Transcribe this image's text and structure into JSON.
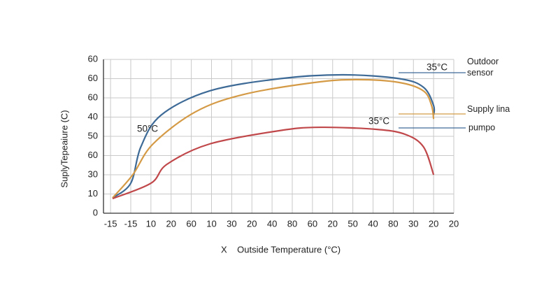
{
  "chart_data": {
    "type": "line",
    "y_label": "SuplyTepeaiure (C)",
    "x_label": "X    Outside Temperature (°C)",
    "xlim": [
      -0.35,
      17
    ],
    "ylim": [
      0,
      80
    ],
    "xticks": [
      {
        "value": 0,
        "label": "-15"
      },
      {
        "value": 1,
        "label": "-15"
      },
      {
        "value": 2,
        "label": "10"
      },
      {
        "value": 3,
        "label": "20"
      },
      {
        "value": 4,
        "label": "60"
      },
      {
        "value": 5,
        "label": "10"
      },
      {
        "value": 6,
        "label": "30"
      },
      {
        "value": 7,
        "label": "20"
      },
      {
        "value": 8,
        "label": "40"
      },
      {
        "value": 9,
        "label": "80"
      },
      {
        "value": 10,
        "label": "60"
      },
      {
        "value": 11,
        "label": "20"
      },
      {
        "value": 12,
        "label": "50"
      },
      {
        "value": 13,
        "label": "40"
      },
      {
        "value": 14,
        "label": "80"
      },
      {
        "value": 15,
        "label": "30"
      },
      {
        "value": 16,
        "label": "20"
      },
      {
        "value": 17,
        "label": "20"
      }
    ],
    "yticks": [
      0,
      10,
      {
        "value": 20,
        "label": "30"
      },
      {
        "value": 30,
        "label": "60"
      },
      {
        "value": 40,
        "label": "50"
      },
      {
        "value": 50,
        "label": "40"
      },
      60,
      {
        "value": 70,
        "label": "60"
      },
      {
        "value": 80,
        "label": "60"
      }
    ],
    "grid": true,
    "series": [
      {
        "name": "Outdoor sensor",
        "color": "#3d6a96",
        "x": [
          0.1,
          1,
          1.5,
          2.5,
          4.9,
          8.4,
          11.5,
          14.3,
          15.5,
          16,
          16
        ],
        "values": [
          8,
          15.6,
          34.5,
          51,
          63.6,
          70,
          72,
          70,
          65.5,
          56,
          51
        ]
      },
      {
        "name": "Supply lina",
        "color": "#d49a45",
        "x": [
          0.1,
          1.1,
          2.1,
          4.2,
          6.6,
          10.1,
          12.2,
          14.3,
          15.5,
          15.9,
          16
        ],
        "values": [
          8,
          20,
          36,
          52.7,
          61.8,
          68,
          69.5,
          68,
          63.6,
          56,
          49
        ]
      },
      {
        "color": "#c0474a",
        "x": [
          0.1,
          2,
          2.8,
          4.9,
          8.4,
          10.4,
          13.2,
          14.6,
          15.5,
          16
        ],
        "values": [
          7.6,
          15.6,
          25.5,
          36,
          43,
          44.7,
          43.6,
          41,
          34.5,
          20
        ]
      }
    ],
    "annotations": [
      {
        "text": "50°C"
      },
      {
        "text": "35°C"
      },
      {
        "text": "35°C"
      },
      {
        "text": "pumpo",
        "color": "#3d6a96"
      }
    ]
  }
}
